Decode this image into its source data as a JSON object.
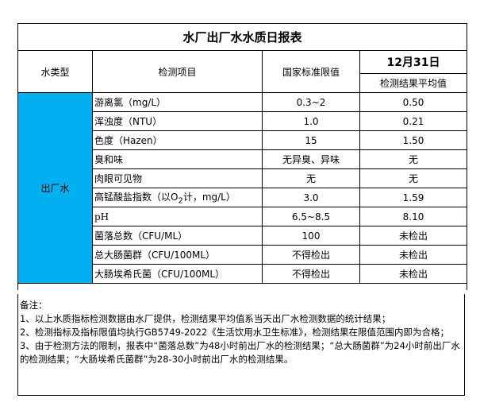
{
  "title": "水厂出厂水水质日报表",
  "headers": {
    "water_type": "水类型",
    "item": "检测项目",
    "standard": "国家标准限值",
    "date": "12月31日",
    "avg": "检测结果平均值"
  },
  "water_type_value": "出厂水",
  "rows": [
    {
      "item": "游离氯（mg/L）",
      "standard": "0.3~2",
      "avg": "0.50"
    },
    {
      "item": "浑浊度（NTU）",
      "standard": "1.0",
      "avg": "0.21"
    },
    {
      "item": "色度（Hazen）",
      "standard": "15",
      "avg": "1.50"
    },
    {
      "item": "臭和味",
      "standard": "无异臭、异味",
      "avg": "无"
    },
    {
      "item": "肉眼可见物",
      "standard": "无",
      "avg": "无"
    },
    {
      "item_pre": "高锰酸盐指数（以O",
      "item_sub": "2",
      "item_post": "计，mg/L）",
      "standard": "3.0",
      "avg": "1.59"
    },
    {
      "item": "pH",
      "standard": "6.5~8.5",
      "avg": "8.10"
    },
    {
      "item": "菌落总数（CFU/ML）",
      "standard": "100",
      "avg": "未检出"
    },
    {
      "item": "总大肠菌群（CFU/100ML）",
      "standard": "不得检出",
      "avg": "未检出"
    },
    {
      "item": "大肠埃希氏菌（CFU/100ML）",
      "standard": "不得检出",
      "avg": "未检出"
    }
  ],
  "notes": [
    "备注：",
    "1、以上水质指标检测数据由水厂提供，检测结果平均值系当天出厂水检测数据的统计结果；",
    "2、检测指标及指标限值均执行GB5749-2022《生活饮用水卫生标准》，检测结果在限值范围内即为合格；",
    "3、由于检测方法的限制，报表中“菌落总数”为48小时前出厂水的检测结果；“总大肠菌群”为24小时前出厂水的检测结果；“大肠埃希氏菌群”为28-30小时前出厂水的检测结果。"
  ],
  "colors": {
    "water_type_cell": "#00b0f0"
  }
}
